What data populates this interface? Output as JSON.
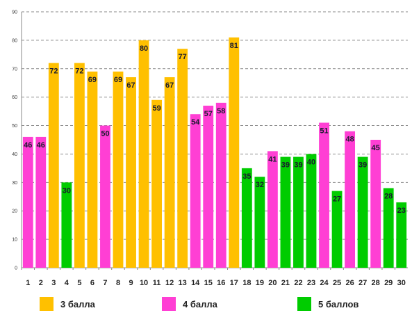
{
  "chart_data": {
    "type": "bar",
    "categories": [
      "1",
      "2",
      "3",
      "4",
      "5",
      "6",
      "7",
      "8",
      "9",
      "10",
      "11",
      "12",
      "13",
      "14",
      "15",
      "16",
      "17",
      "18",
      "19",
      "20",
      "21",
      "22",
      "23",
      "24",
      "25",
      "26",
      "27",
      "28",
      "29",
      "30"
    ],
    "values": [
      46,
      46,
      72,
      30,
      72,
      69,
      50,
      69,
      67,
      80,
      59,
      67,
      77,
      54,
      57,
      58,
      81,
      35,
      32,
      41,
      39,
      39,
      40,
      51,
      27,
      48,
      39,
      45,
      28,
      23
    ],
    "groups": [
      "4 балла",
      "4 балла",
      "3 балла",
      "5 баллов",
      "3 балла",
      "3 балла",
      "4 балла",
      "3 балла",
      "3 балла",
      "3 балла",
      "3 балла",
      "3 балла",
      "3 балла",
      "4 балла",
      "4 балла",
      "4 балла",
      "3 балла",
      "5 баллов",
      "5 баллов",
      "4 балла",
      "5 баллов",
      "5 баллов",
      "5 баллов",
      "4 балла",
      "5 баллов",
      "4 балла",
      "5 баллов",
      "4 балла",
      "5 баллов",
      "5 баллов"
    ],
    "data_labels_shown": [
      true,
      true,
      true,
      true,
      true,
      true,
      true,
      true,
      true,
      true,
      true,
      true,
      true,
      true,
      true,
      true,
      true,
      true,
      true,
      true,
      true,
      true,
      true,
      true,
      true,
      true,
      true,
      true,
      true,
      true
    ],
    "ylim": [
      0,
      90
    ],
    "yticks": [
      0,
      10,
      20,
      30,
      40,
      50,
      60,
      70,
      80,
      90
    ],
    "grid": "horizontal dashed",
    "legend_position": "bottom",
    "title": "",
    "xlabel": "",
    "ylabel": ""
  },
  "legend": [
    {
      "label": "3 балла",
      "color": "#FFC000"
    },
    {
      "label": "4 балла",
      "color": "#FF3FD4"
    },
    {
      "label": "5 баллов",
      "color": "#00CC00"
    }
  ]
}
